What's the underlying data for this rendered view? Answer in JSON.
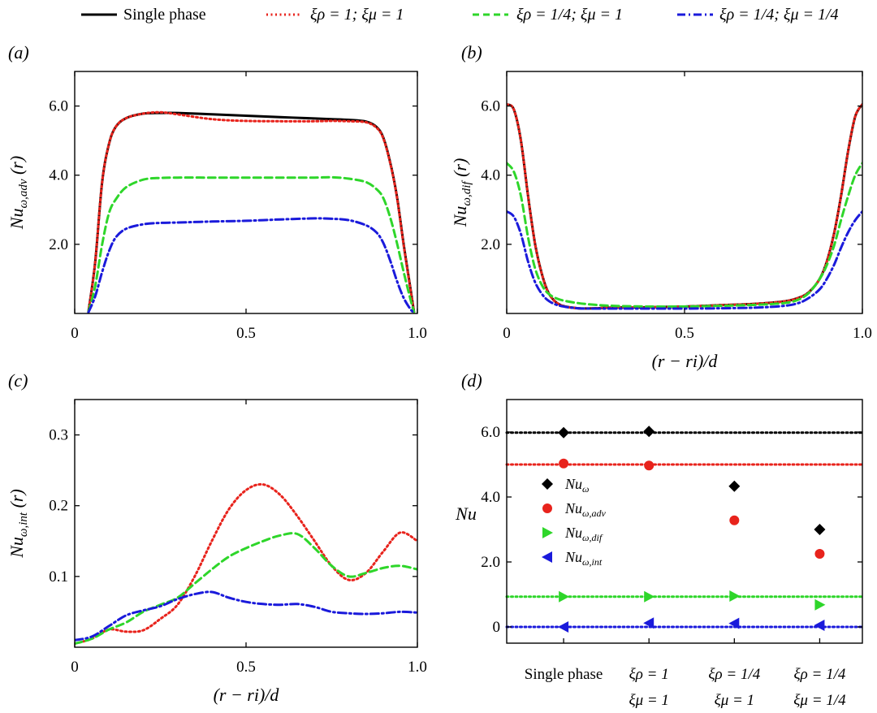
{
  "legend": {
    "items": [
      {
        "label": "Single phase",
        "color": "#000000",
        "dash": "solid"
      },
      {
        "label": "ξρ = 1; ξμ = 1",
        "color": "#e8231c",
        "dash": "dotted"
      },
      {
        "label": "ξρ = 1/4; ξμ = 1",
        "color": "#2ed62a",
        "dash": "dashed"
      },
      {
        "label": "ξρ = 1/4; ξμ = 1/4",
        "color": "#1a1adb",
        "dash": "dashdot"
      }
    ]
  },
  "chart_data": [
    {
      "panel": "(a)",
      "type": "line",
      "ylabel": "Nuω,adv (r)",
      "xlabel": "",
      "xlim": [
        0,
        1
      ],
      "ylim": [
        0,
        7
      ],
      "xticks": [
        "0",
        "0.5",
        "1.0"
      ],
      "yticks": [
        "2.0",
        "4.0",
        "6.0"
      ],
      "x": [
        0.04,
        0.06,
        0.08,
        0.1,
        0.12,
        0.15,
        0.2,
        0.25,
        0.3,
        0.4,
        0.5,
        0.6,
        0.7,
        0.75,
        0.8,
        0.85,
        0.88,
        0.9,
        0.92,
        0.94,
        0.96,
        0.98,
        0.99
      ],
      "series": [
        {
          "name": "Single phase",
          "values": [
            0.05,
            1.5,
            3.8,
            4.9,
            5.4,
            5.65,
            5.78,
            5.8,
            5.8,
            5.76,
            5.72,
            5.68,
            5.64,
            5.62,
            5.6,
            5.55,
            5.4,
            5.1,
            4.4,
            3.4,
            2.0,
            0.7,
            0.05
          ]
        },
        {
          "name": "ξρ = 1; ξμ = 1",
          "values": [
            0.05,
            1.5,
            3.8,
            4.9,
            5.4,
            5.65,
            5.78,
            5.82,
            5.76,
            5.62,
            5.57,
            5.56,
            5.56,
            5.57,
            5.56,
            5.53,
            5.38,
            5.08,
            4.38,
            3.38,
            1.98,
            0.68,
            0.05
          ]
        },
        {
          "name": "ξρ = 1/4; ξμ = 1",
          "values": [
            0.05,
            0.8,
            2.0,
            2.9,
            3.3,
            3.65,
            3.87,
            3.92,
            3.93,
            3.93,
            3.93,
            3.93,
            3.93,
            3.94,
            3.9,
            3.8,
            3.6,
            3.35,
            2.8,
            2.05,
            1.2,
            0.4,
            0.05
          ]
        },
        {
          "name": "ξρ = 1/4; ξμ = 1/4",
          "values": [
            0.03,
            0.5,
            1.2,
            1.8,
            2.2,
            2.45,
            2.58,
            2.62,
            2.63,
            2.66,
            2.68,
            2.72,
            2.75,
            2.74,
            2.7,
            2.55,
            2.35,
            2.05,
            1.55,
            0.95,
            0.45,
            0.12,
            0.02
          ]
        }
      ]
    },
    {
      "panel": "(b)",
      "type": "line",
      "ylabel": "Nuω,dif (r)",
      "xlabel": "(r − ri)/d",
      "xlim": [
        0,
        1
      ],
      "ylim": [
        0,
        7
      ],
      "xticks": [
        "0",
        "0.5",
        "1.0"
      ],
      "yticks": [
        "2.0",
        "4.0",
        "6.0"
      ],
      "x": [
        0.0,
        0.02,
        0.04,
        0.06,
        0.08,
        0.1,
        0.12,
        0.15,
        0.2,
        0.25,
        0.3,
        0.4,
        0.5,
        0.6,
        0.7,
        0.78,
        0.82,
        0.85,
        0.88,
        0.9,
        0.92,
        0.94,
        0.96,
        0.98,
        1.0
      ],
      "series": [
        {
          "name": "Single phase",
          "values": [
            6.05,
            5.9,
            5.0,
            3.4,
            2.0,
            1.1,
            0.55,
            0.25,
            0.15,
            0.15,
            0.17,
            0.18,
            0.2,
            0.24,
            0.28,
            0.35,
            0.45,
            0.62,
            1.0,
            1.5,
            2.3,
            3.4,
            4.7,
            5.7,
            6.05
          ]
        },
        {
          "name": "ξρ = 1; ξμ = 1",
          "values": [
            6.05,
            5.9,
            5.0,
            3.4,
            2.0,
            1.1,
            0.55,
            0.25,
            0.15,
            0.15,
            0.17,
            0.18,
            0.2,
            0.24,
            0.28,
            0.35,
            0.45,
            0.62,
            1.0,
            1.5,
            2.3,
            3.4,
            4.7,
            5.7,
            6.05
          ]
        },
        {
          "name": "ξρ = 1/4; ξμ = 1",
          "values": [
            4.35,
            4.1,
            3.4,
            2.2,
            1.3,
            0.8,
            0.55,
            0.4,
            0.3,
            0.25,
            0.22,
            0.2,
            0.2,
            0.22,
            0.25,
            0.3,
            0.4,
            0.6,
            1.0,
            1.4,
            1.95,
            2.7,
            3.4,
            4.0,
            4.35
          ]
        },
        {
          "name": "ξρ = 1/4; ξμ = 1/4",
          "values": [
            2.95,
            2.8,
            2.3,
            1.5,
            0.9,
            0.55,
            0.35,
            0.22,
            0.15,
            0.14,
            0.14,
            0.14,
            0.14,
            0.15,
            0.17,
            0.22,
            0.3,
            0.45,
            0.7,
            1.0,
            1.4,
            1.9,
            2.35,
            2.7,
            2.95
          ]
        }
      ]
    },
    {
      "panel": "(c)",
      "type": "line",
      "ylabel": "Nuω,int (r)",
      "xlabel": "(r − ri)/d",
      "xlim": [
        0,
        1
      ],
      "ylim": [
        0,
        0.35
      ],
      "xticks": [
        "0",
        "0.5",
        "1.0"
      ],
      "yticks": [
        "0.1",
        "0.2",
        "0.3"
      ],
      "x": [
        0.0,
        0.05,
        0.1,
        0.15,
        0.2,
        0.25,
        0.3,
        0.35,
        0.4,
        0.45,
        0.5,
        0.55,
        0.6,
        0.65,
        0.7,
        0.75,
        0.8,
        0.85,
        0.9,
        0.95,
        1.0
      ],
      "series": [
        {
          "name": "ξρ = 1; ξμ = 1",
          "values": [
            0.005,
            0.012,
            0.025,
            0.022,
            0.024,
            0.04,
            0.06,
            0.1,
            0.15,
            0.195,
            0.222,
            0.23,
            0.215,
            0.185,
            0.15,
            0.115,
            0.095,
            0.105,
            0.135,
            0.162,
            0.15
          ]
        },
        {
          "name": "ξρ = 1/4; ξμ = 1",
          "values": [
            0.005,
            0.012,
            0.025,
            0.035,
            0.05,
            0.06,
            0.07,
            0.09,
            0.11,
            0.128,
            0.14,
            0.15,
            0.158,
            0.16,
            0.14,
            0.115,
            0.1,
            0.105,
            0.112,
            0.115,
            0.11
          ]
        },
        {
          "name": "ξρ = 1/4; ξμ = 1/4",
          "values": [
            0.01,
            0.015,
            0.03,
            0.045,
            0.052,
            0.058,
            0.068,
            0.075,
            0.078,
            0.07,
            0.064,
            0.061,
            0.06,
            0.061,
            0.057,
            0.05,
            0.048,
            0.047,
            0.048,
            0.05,
            0.049
          ]
        }
      ]
    },
    {
      "panel": "(d)",
      "type": "scatter",
      "ylabel": "Nu",
      "xlabel": "",
      "ylim": [
        -0.5,
        7
      ],
      "yticks": [
        "0",
        "2.0",
        "4.0",
        "6.0"
      ],
      "categories": [
        {
          "line1": "Single phase",
          "line2": ""
        },
        {
          "line1": "ξρ = 1",
          "line2": "ξμ = 1"
        },
        {
          "line1": "ξρ = 1/4",
          "line2": "ξμ = 1"
        },
        {
          "line1": "ξρ = 1/4",
          "line2": "ξμ = 1/4"
        }
      ],
      "reference_lines": [
        {
          "value": 5.98,
          "color": "#000000"
        },
        {
          "value": 5.0,
          "color": "#e8231c"
        },
        {
          "value": 0.93,
          "color": "#2ed62a"
        },
        {
          "value": 0.0,
          "color": "#1a1adb"
        }
      ],
      "series": [
        {
          "name": "Nuω",
          "marker": "diamond",
          "color": "#000000",
          "values": [
            5.98,
            6.02,
            4.33,
            3.0
          ]
        },
        {
          "name": "Nuω,adv",
          "marker": "circle",
          "color": "#e8231c",
          "values": [
            5.03,
            4.97,
            3.28,
            2.25
          ]
        },
        {
          "name": "Nuω,dif",
          "marker": "triangle-right",
          "color": "#2ed62a",
          "values": [
            0.93,
            0.93,
            0.95,
            0.68
          ]
        },
        {
          "name": "Nuω,int",
          "marker": "triangle-left",
          "color": "#1a1adb",
          "values": [
            0.0,
            0.12,
            0.11,
            0.05
          ]
        }
      ]
    }
  ]
}
